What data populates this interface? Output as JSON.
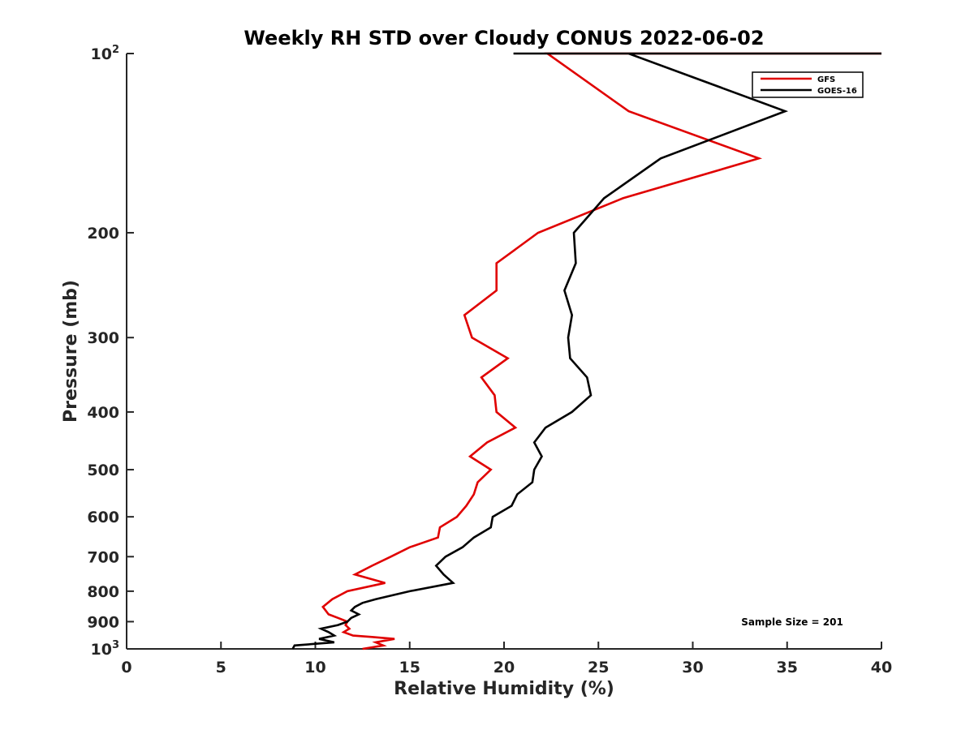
{
  "chart_data": {
    "type": "line",
    "title": "Weekly RH STD over Cloudy CONUS 2022-06-02",
    "xlabel": "Relative Humidity (%)",
    "ylabel": "Pressure (mb)",
    "xlim": [
      0,
      40
    ],
    "ylim": [
      100,
      1000
    ],
    "y_scale": "log",
    "y_reversed": true,
    "x_ticks": [
      "0",
      "5",
      "10",
      "15",
      "20",
      "25",
      "30",
      "35",
      "40"
    ],
    "y_ticks": [
      {
        "value": 100,
        "base": "10",
        "exp": "2"
      },
      {
        "value": 200,
        "label": "200"
      },
      {
        "value": 300,
        "label": "300"
      },
      {
        "value": 400,
        "label": "400"
      },
      {
        "value": 500,
        "label": "500"
      },
      {
        "value": 600,
        "label": "600"
      },
      {
        "value": 700,
        "label": "700"
      },
      {
        "value": 800,
        "label": "800"
      },
      {
        "value": 900,
        "label": "900"
      },
      {
        "value": 1000,
        "base": "10",
        "exp": "3"
      }
    ],
    "grid": false,
    "legend_position": "top-right",
    "annotation": "Sample Size = 201",
    "series": [
      {
        "name": "GFS",
        "color": "#e00000",
        "points": [
          [
            12.5,
            1000
          ],
          [
            13.6,
            987
          ],
          [
            13.2,
            975
          ],
          [
            14.2,
            962
          ],
          [
            13.0,
            955
          ],
          [
            12.0,
            950
          ],
          [
            11.5,
            937
          ],
          [
            11.8,
            925
          ],
          [
            11.6,
            912
          ],
          [
            11.7,
            900
          ],
          [
            11.2,
            887
          ],
          [
            10.7,
            875
          ],
          [
            10.4,
            850
          ],
          [
            10.9,
            825
          ],
          [
            11.7,
            800
          ],
          [
            13.7,
            775
          ],
          [
            12.1,
            750
          ],
          [
            13.0,
            725
          ],
          [
            14.0,
            700
          ],
          [
            15.0,
            675
          ],
          [
            16.5,
            650
          ],
          [
            16.6,
            625
          ],
          [
            17.5,
            600
          ],
          [
            18.0,
            575
          ],
          [
            18.4,
            550
          ],
          [
            18.6,
            525
          ],
          [
            19.3,
            500
          ],
          [
            18.2,
            475
          ],
          [
            19.1,
            450
          ],
          [
            20.6,
            425
          ],
          [
            19.6,
            400
          ],
          [
            19.5,
            375
          ],
          [
            18.8,
            350
          ],
          [
            20.2,
            325
          ],
          [
            18.3,
            300
          ],
          [
            17.9,
            275
          ],
          [
            19.6,
            250
          ],
          [
            19.6,
            225
          ],
          [
            21.8,
            200
          ],
          [
            26.3,
            175
          ],
          [
            33.5,
            150
          ],
          [
            26.6,
            125
          ],
          [
            22.3,
            100
          ],
          [
            40.0,
            100
          ]
        ]
      },
      {
        "name": "GOES-16",
        "color": "#000000",
        "points": [
          [
            8.8,
            1000
          ],
          [
            8.9,
            987
          ],
          [
            11.0,
            975
          ],
          [
            10.2,
            962
          ],
          [
            11.0,
            950
          ],
          [
            10.7,
            937
          ],
          [
            10.3,
            925
          ],
          [
            11.2,
            912
          ],
          [
            11.7,
            900
          ],
          [
            11.9,
            887
          ],
          [
            12.3,
            875
          ],
          [
            11.9,
            862
          ],
          [
            12.1,
            850
          ],
          [
            12.5,
            837
          ],
          [
            13.2,
            825
          ],
          [
            15.0,
            800
          ],
          [
            17.3,
            775
          ],
          [
            16.8,
            750
          ],
          [
            16.4,
            725
          ],
          [
            16.9,
            700
          ],
          [
            17.8,
            675
          ],
          [
            18.4,
            650
          ],
          [
            19.3,
            625
          ],
          [
            19.4,
            600
          ],
          [
            20.4,
            575
          ],
          [
            20.7,
            550
          ],
          [
            21.5,
            525
          ],
          [
            21.6,
            500
          ],
          [
            22.0,
            475
          ],
          [
            21.6,
            450
          ],
          [
            22.2,
            425
          ],
          [
            23.6,
            400
          ],
          [
            24.6,
            375
          ],
          [
            24.4,
            350
          ],
          [
            23.5,
            325
          ],
          [
            23.4,
            300
          ],
          [
            23.6,
            275
          ],
          [
            23.2,
            250
          ],
          [
            23.8,
            225
          ],
          [
            23.7,
            200
          ],
          [
            25.3,
            175
          ],
          [
            28.3,
            150
          ],
          [
            34.9,
            125
          ],
          [
            26.6,
            100
          ],
          [
            20.5,
            100
          ],
          [
            40.0,
            100
          ]
        ]
      }
    ]
  }
}
